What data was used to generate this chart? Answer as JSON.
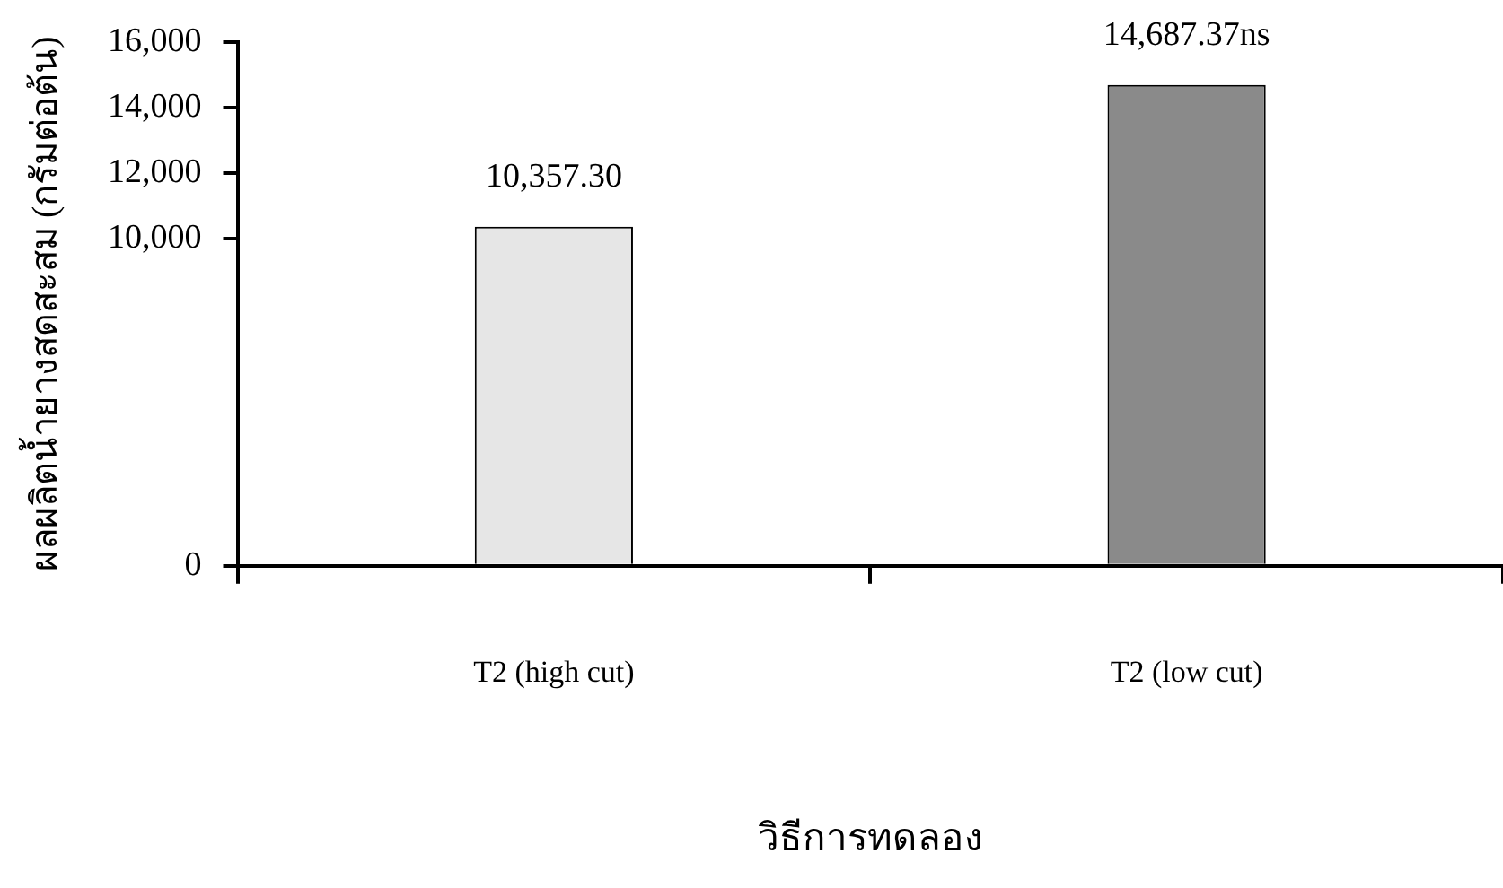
{
  "chart_data": {
    "type": "bar",
    "xlabel": "วิธีการทดลอง",
    "ylabel": "ผลผลิตน้ำยางสดสะสม (กรัมต่อต้น)",
    "categories": [
      "T2 (high cut)",
      "T2 (low cut)"
    ],
    "values": [
      10357.3,
      14687.37
    ],
    "colors": [
      "#e6e6e6",
      "#8a8a8a"
    ],
    "value_labels": [
      "10,357.30",
      "14,687.37ns"
    ],
    "ylim": [
      0,
      16000
    ],
    "yticks": [
      0,
      {
        "value": 10000,
        "label": "10,000"
      },
      {
        "value": 12000,
        "label": "12,000"
      },
      {
        "value": 14000,
        "label": "14,000"
      },
      {
        "value": 16000,
        "label": "16,000"
      }
    ],
    "grid": false,
    "legend": false
  }
}
